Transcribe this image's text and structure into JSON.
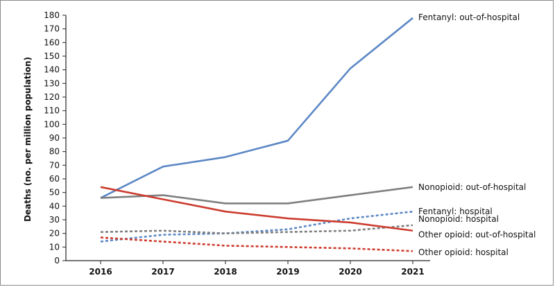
{
  "chart_data": {
    "type": "line",
    "ylabel": "Deaths (no. per million population)",
    "xlabel": "",
    "x": [
      2016,
      2017,
      2018,
      2019,
      2020,
      2021
    ],
    "x_tick_labels": [
      "2016",
      "2017",
      "2018",
      "2019",
      "2020",
      "2021"
    ],
    "ylim": [
      0,
      180
    ],
    "y_ticks": [
      0,
      10,
      20,
      30,
      40,
      50,
      60,
      70,
      80,
      90,
      100,
      110,
      120,
      130,
      140,
      150,
      160,
      170,
      180
    ],
    "grid": false,
    "legend": "direct labels at line ends",
    "series": [
      {
        "name": "Fentanyl: out-of-hospital",
        "color": "#5b87c5",
        "dash": "solid",
        "values": [
          46,
          69,
          76,
          88,
          141,
          178
        ]
      },
      {
        "name": "Nonopioid: out-of-hospital",
        "color": "#7f7f7f",
        "dash": "solid",
        "values": [
          46,
          48,
          42,
          42,
          48,
          54
        ]
      },
      {
        "name": "Fentanyl: hospital",
        "color": "#5b87c5",
        "dash": "dotted",
        "values": [
          14,
          19,
          20,
          23,
          31,
          36
        ]
      },
      {
        "name": "Nonopioid: hospital",
        "color": "#7f7f7f",
        "dash": "dotted",
        "values": [
          21,
          22,
          20,
          21,
          22,
          26
        ]
      },
      {
        "name": "Other opioid: out-of-hospital",
        "color": "#cc3b2e",
        "dash": "solid",
        "values": [
          54,
          45,
          36,
          31,
          28,
          22
        ]
      },
      {
        "name": "Other opioid: hospital",
        "color": "#cc3b2e",
        "dash": "dotted",
        "values": [
          17,
          14,
          11,
          10,
          9,
          7
        ]
      }
    ]
  }
}
